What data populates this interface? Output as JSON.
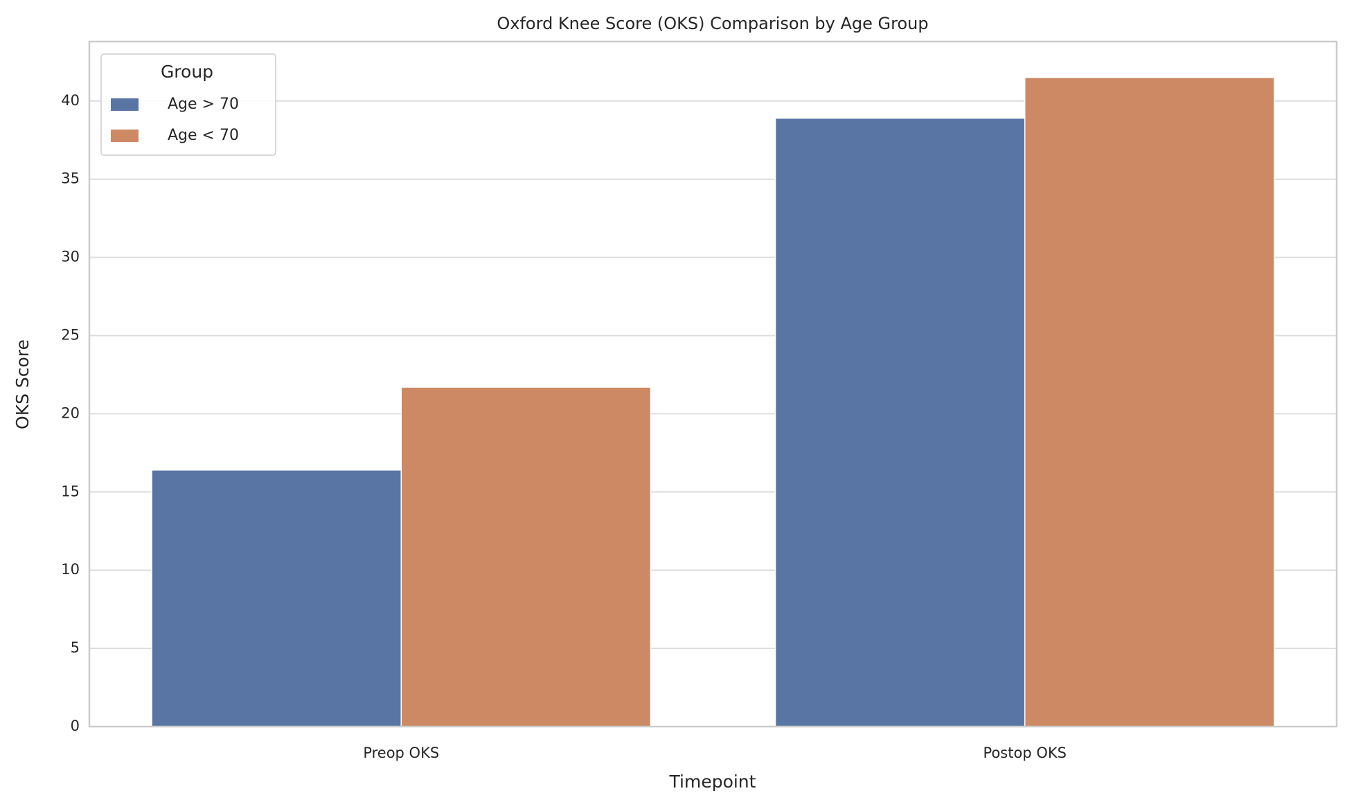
{
  "chart_data": {
    "type": "bar",
    "title": "Oxford Knee Score (OKS) Comparison by Age Group",
    "x_label": "Timepoint",
    "y_label": "OKS Score",
    "categories": [
      "Preop OKS",
      "Postop OKS"
    ],
    "series": [
      {
        "name": "Age > 70",
        "color": "#5975a4",
        "values": [
          16.4,
          38.9
        ]
      },
      {
        "name": "Age < 70",
        "color": "#cc8963",
        "values": [
          21.7,
          41.5
        ]
      }
    ],
    "ylim": [
      0,
      43.8
    ],
    "yticks": [
      0,
      5,
      10,
      15,
      20,
      25,
      30,
      35,
      40
    ],
    "grid": true,
    "legend_title": "Group",
    "legend_position": "upper left"
  }
}
